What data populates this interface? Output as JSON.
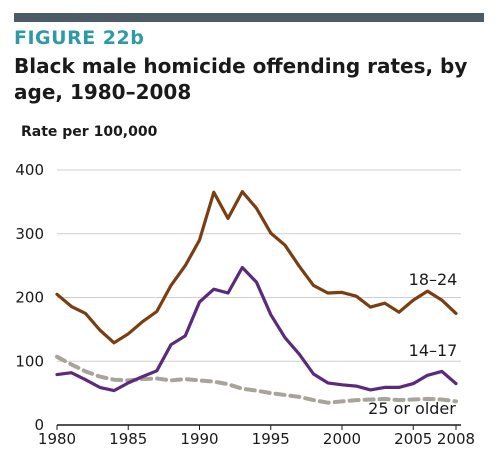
{
  "figure": {
    "label": "FIGURE 22b",
    "title": "Black male homicide offending rates, by age, 1980–2008"
  },
  "chart_data": {
    "type": "line",
    "title": "Black male homicide offending rates, by age, 1980–2008",
    "ylabel": "Rate per 100,000",
    "xlabel": "",
    "x": [
      1980,
      1981,
      1982,
      1983,
      1984,
      1985,
      1986,
      1987,
      1988,
      1989,
      1990,
      1991,
      1992,
      1993,
      1994,
      1995,
      1996,
      1997,
      1998,
      1999,
      2000,
      2001,
      2002,
      2003,
      2004,
      2005,
      2006,
      2007,
      2008
    ],
    "xlim": [
      1980,
      2008
    ],
    "ylim": [
      0,
      400
    ],
    "x_ticks": [
      {
        "value": 1980,
        "label": "1980"
      },
      {
        "value": 1985,
        "label": "1985"
      },
      {
        "value": 1990,
        "label": "1990"
      },
      {
        "value": 1995,
        "label": "1995"
      },
      {
        "value": 2000,
        "label": "2000"
      },
      {
        "value": 2005,
        "label": "2005"
      },
      {
        "value": 2008,
        "label": "2008"
      }
    ],
    "y_ticks": [
      {
        "value": 0,
        "label": "0"
      },
      {
        "value": 100,
        "label": "100"
      },
      {
        "value": 200,
        "label": "200"
      },
      {
        "value": 300,
        "label": "300"
      },
      {
        "value": 400,
        "label": "400"
      }
    ],
    "grid": "horizontal",
    "series": [
      {
        "name": "18–24",
        "color": "#7a3e12",
        "style": "solid",
        "values": [
          205,
          186,
          175,
          149,
          129,
          143,
          162,
          178,
          219,
          250,
          290,
          365,
          324,
          366,
          340,
          301,
          282,
          249,
          219,
          207,
          208,
          202,
          185,
          191,
          177,
          196,
          210,
          196,
          175
        ]
      },
      {
        "name": "14–17",
        "color": "#5b2a7a",
        "style": "solid",
        "values": [
          79,
          82,
          71,
          59,
          54,
          66,
          76,
          85,
          126,
          140,
          193,
          213,
          207,
          247,
          224,
          173,
          137,
          111,
          80,
          66,
          63,
          61,
          55,
          59,
          59,
          65,
          78,
          84,
          65
        ]
      },
      {
        "name": "25 or older",
        "color": "#a8a39b",
        "style": "dashed",
        "values": [
          107,
          95,
          84,
          76,
          71,
          70,
          72,
          73,
          70,
          72,
          70,
          68,
          64,
          57,
          54,
          50,
          47,
          44,
          39,
          35,
          37,
          39,
          40,
          41,
          39,
          40,
          41,
          40,
          37
        ]
      }
    ]
  }
}
